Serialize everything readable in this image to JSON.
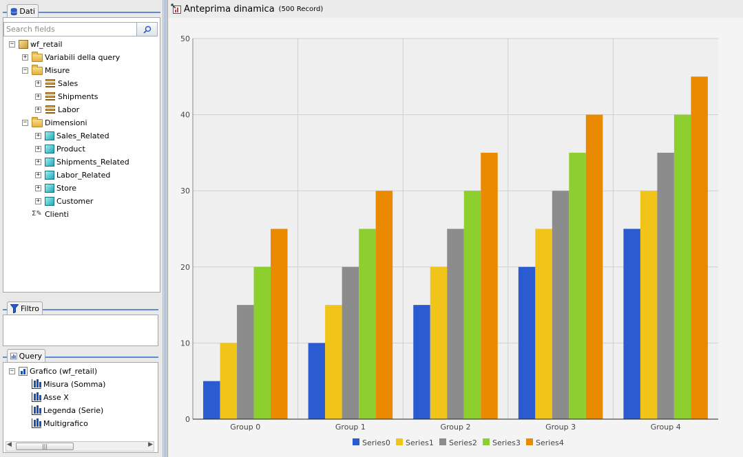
{
  "left_panel": {
    "data_tab": {
      "label": "Dati",
      "icon": "database-icon"
    },
    "search": {
      "placeholder": "Search fields",
      "value": ""
    },
    "tree": [
      {
        "label": "wf_retail",
        "icon": "box-icon",
        "expander": "−",
        "level": 0
      },
      {
        "label": "Variabili della query",
        "icon": "folder-icon",
        "expander": "+",
        "level": 1
      },
      {
        "label": "Misure",
        "icon": "folder-open-icon",
        "expander": "−",
        "level": 1
      },
      {
        "label": "Sales",
        "icon": "measure-icon",
        "expander": "+",
        "level": 2
      },
      {
        "label": "Shipments",
        "icon": "measure-icon",
        "expander": "+",
        "level": 2
      },
      {
        "label": "Labor",
        "icon": "measure-icon",
        "expander": "+",
        "level": 2
      },
      {
        "label": "Dimensioni",
        "icon": "folder-open-icon",
        "expander": "−",
        "level": 1
      },
      {
        "label": "Sales_Related",
        "icon": "dimension-cube-icon",
        "expander": "+",
        "level": 2
      },
      {
        "label": "Product",
        "icon": "dimension-cube-icon",
        "expander": "+",
        "level": 2
      },
      {
        "label": "Shipments_Related",
        "icon": "dimension-cube-icon",
        "expander": "+",
        "level": 2
      },
      {
        "label": "Labor_Related",
        "icon": "dimension-cube-icon",
        "expander": "+",
        "level": 2
      },
      {
        "label": "Store",
        "icon": "dimension-cube-icon",
        "expander": "+",
        "level": 2
      },
      {
        "label": "Customer",
        "icon": "dimension-cube-icon",
        "expander": "+",
        "level": 2
      },
      {
        "label": "Clienti",
        "icon": "sigma-pencil-icon",
        "expander": "",
        "level": 1
      }
    ],
    "filter_tab": {
      "label": "Filtro",
      "icon": "funnel-icon"
    },
    "query_tab": {
      "label": "Query",
      "icon": "chart-icon"
    },
    "query_tree": [
      {
        "label": "Grafico (wf_retail)",
        "icon": "chart-icon",
        "expander": "−",
        "level": 0
      },
      {
        "label": "Misura (Somma)",
        "icon": "bars-icon",
        "expander": "",
        "level": 1
      },
      {
        "label": "Asse X",
        "icon": "bars-icon",
        "expander": "",
        "level": 1
      },
      {
        "label": "Legenda (Serie)",
        "icon": "bars-icon",
        "expander": "",
        "level": 1
      },
      {
        "label": "Multigrafico",
        "icon": "bars-icon",
        "expander": "",
        "level": 1
      }
    ]
  },
  "preview": {
    "title": "Anteprima dinamica",
    "subtitle": "(500 Record)",
    "icon": "preview-icon"
  },
  "chart_data": {
    "type": "bar",
    "categories": [
      "Group 0",
      "Group 1",
      "Group 2",
      "Group 3",
      "Group 4"
    ],
    "series": [
      {
        "name": "Series0",
        "color": "#2b5bd0",
        "values": [
          5,
          10,
          15,
          20,
          25
        ]
      },
      {
        "name": "Series1",
        "color": "#f0c419",
        "values": [
          10,
          15,
          20,
          25,
          30
        ]
      },
      {
        "name": "Series2",
        "color": "#8c8c8c",
        "values": [
          15,
          20,
          25,
          30,
          35
        ]
      },
      {
        "name": "Series3",
        "color": "#8ccf2e",
        "values": [
          20,
          25,
          30,
          35,
          40
        ]
      },
      {
        "name": "Series4",
        "color": "#e98a00",
        "values": [
          25,
          30,
          35,
          40,
          45
        ]
      }
    ],
    "yticks": [
      "0",
      "10",
      "20",
      "30",
      "40",
      "50"
    ],
    "ylim": [
      0,
      50
    ],
    "grid": true,
    "legend": "bottom"
  }
}
